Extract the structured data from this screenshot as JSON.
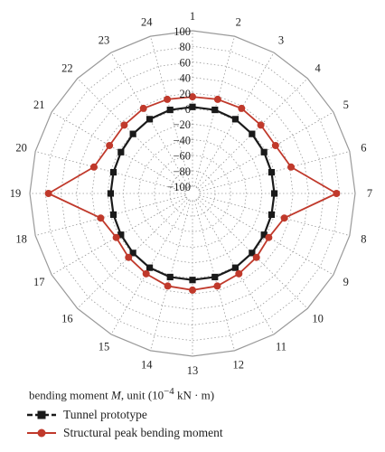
{
  "chart_data": {
    "type": "radar",
    "categories": [
      "1",
      "2",
      "3",
      "4",
      "5",
      "6",
      "7",
      "8",
      "9",
      "10",
      "11",
      "12",
      "13",
      "14",
      "15",
      "16",
      "17",
      "18",
      "19",
      "20",
      "21",
      "22",
      "23",
      "24"
    ],
    "r_ticks": [
      100,
      80,
      60,
      40,
      20,
      0,
      -20,
      -40,
      -60,
      -80,
      -100
    ],
    "r_tick_labels": [
      "100",
      "80",
      "60",
      "40",
      "20",
      "0",
      "−20",
      "−40",
      "−60",
      "−80",
      "−100"
    ],
    "rlim": [
      -100,
      100
    ],
    "grid": true,
    "series": [
      {
        "name": "Tunnel prototype",
        "color": "#1a1a1a",
        "marker": "square",
        "values": [
          2,
          2,
          1,
          -1,
          -3,
          -4,
          -4,
          -4,
          -3,
          -1,
          1,
          2,
          2,
          2,
          1,
          -1,
          -3,
          -4,
          -4,
          -4,
          -3,
          -1,
          1,
          2
        ]
      },
      {
        "name": "Structural peak bending moment",
        "color": "#c0392b",
        "marker": "circle",
        "values": [
          15,
          16,
          17,
          15,
          14,
          22,
          76,
          13,
          4,
          7,
          10,
          14,
          15,
          14,
          10,
          7,
          4,
          13,
          76,
          22,
          14,
          15,
          17,
          16
        ]
      }
    ],
    "legend": {
      "title_prefix": "bending moment ",
      "title_var": "M",
      "title_mid": ", unit (10",
      "title_sup": "−4",
      "title_suffix": " kN · m)",
      "position": "bottom-left"
    }
  }
}
